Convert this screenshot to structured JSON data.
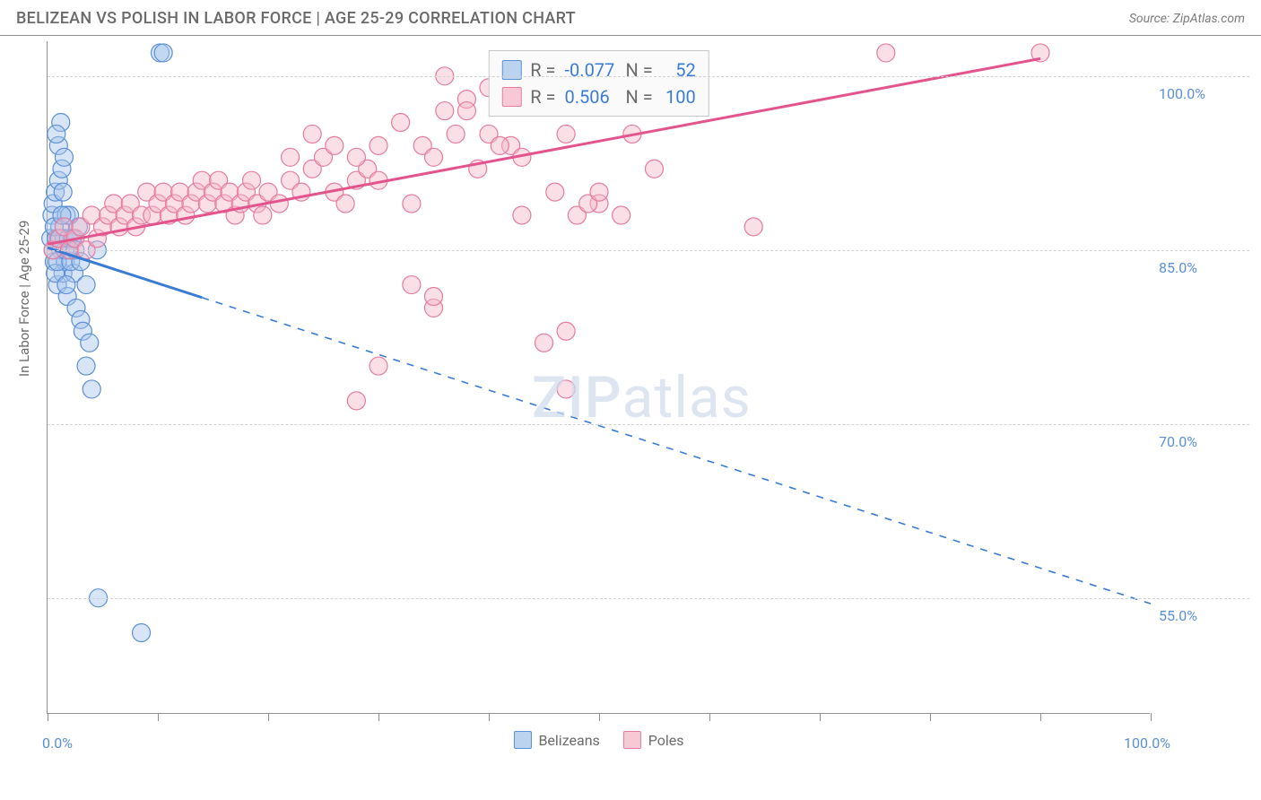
{
  "title": "BELIZEAN VS POLISH IN LABOR FORCE | AGE 25-29 CORRELATION CHART",
  "source": "Source: ZipAtlas.com",
  "watermark_zip": "ZIP",
  "watermark_atlas": "atlas",
  "chart": {
    "type": "scatter",
    "background_color": "#ffffff",
    "axis_color": "#909090",
    "grid_color": "#d2d2d2",
    "text_color": "#6b6b6b",
    "value_color": "#5b8fd6",
    "ylabel": "In Labor Force | Age 25-29",
    "xlim": [
      0,
      100
    ],
    "ylim": [
      45,
      103
    ],
    "xtick_positions": [
      0,
      10,
      20,
      30,
      40,
      50,
      60,
      70,
      80,
      90,
      100
    ],
    "xtick_labels": {
      "0": "0.0%",
      "100": "100.0%"
    },
    "ytick_positions": [
      55,
      70,
      85,
      100
    ],
    "ytick_labels": {
      "55": "55.0%",
      "70": "70.0%",
      "85": "85.0%",
      "100": "100.0%"
    },
    "marker_radius": 10,
    "marker_opacity": 0.45,
    "series": [
      {
        "name": "Belizeans",
        "label": "Belizeans",
        "color_fill": "#a8c5ec",
        "color_stroke": "#5b8fd6",
        "swatch_fill": "#bcd3f0",
        "swatch_stroke": "#5b8fd6",
        "line_color": "#3a7bd5",
        "R": "-0.077",
        "N": "52",
        "trend": {
          "x1": 0,
          "y1": 85.2,
          "x2": 100,
          "y2": 54.5,
          "solid_until_x": 14
        },
        "points": [
          [
            0.3,
            86
          ],
          [
            0.4,
            88
          ],
          [
            0.5,
            89
          ],
          [
            0.6,
            84
          ],
          [
            0.7,
            90
          ],
          [
            0.8,
            86
          ],
          [
            0.9,
            82
          ],
          [
            1.0,
            91
          ],
          [
            1.1,
            87
          ],
          [
            1.2,
            85
          ],
          [
            1.3,
            92
          ],
          [
            1.4,
            83
          ],
          [
            1.5,
            86
          ],
          [
            1.6,
            84
          ],
          [
            1.7,
            88
          ],
          [
            1.8,
            81
          ],
          [
            2.0,
            85
          ],
          [
            2.2,
            86
          ],
          [
            2.4,
            83
          ],
          [
            2.6,
            80
          ],
          [
            2.8,
            87
          ],
          [
            3.0,
            79
          ],
          [
            3.2,
            78
          ],
          [
            3.5,
            75
          ],
          [
            3.8,
            77
          ],
          [
            4.0,
            73
          ],
          [
            1.0,
            94
          ],
          [
            1.2,
            96
          ],
          [
            1.5,
            93
          ],
          [
            0.8,
            95
          ],
          [
            1.8,
            85
          ],
          [
            2.0,
            88
          ],
          [
            0.5,
            85
          ],
          [
            0.6,
            87
          ],
          [
            0.7,
            83
          ],
          [
            0.9,
            84
          ],
          [
            1.1,
            86
          ],
          [
            1.3,
            88
          ],
          [
            1.4,
            90
          ],
          [
            1.6,
            85
          ],
          [
            1.7,
            82
          ],
          [
            1.9,
            86
          ],
          [
            2.1,
            84
          ],
          [
            2.3,
            86
          ],
          [
            2.5,
            85
          ],
          [
            3.0,
            84
          ],
          [
            3.5,
            82
          ],
          [
            4.5,
            85
          ],
          [
            10.2,
            102
          ],
          [
            10.5,
            102
          ],
          [
            4.6,
            55
          ],
          [
            8.5,
            52
          ]
        ]
      },
      {
        "name": "Poles",
        "label": "Poles",
        "color_fill": "#f5b8ca",
        "color_stroke": "#e57ba0",
        "swatch_fill": "#f7c9d7",
        "swatch_stroke": "#e57ba0",
        "line_color": "#e3548c",
        "R": "0.506",
        "N": "100",
        "trend": {
          "x1": 0,
          "y1": 85.5,
          "x2": 90,
          "y2": 101.5,
          "solid_until_x": 90
        },
        "points": [
          [
            0.5,
            85
          ],
          [
            1,
            86
          ],
          [
            1.5,
            87
          ],
          [
            2,
            85
          ],
          [
            2.5,
            86
          ],
          [
            3,
            87
          ],
          [
            3.5,
            85
          ],
          [
            4,
            88
          ],
          [
            4.5,
            86
          ],
          [
            5,
            87
          ],
          [
            5.5,
            88
          ],
          [
            6,
            89
          ],
          [
            6.5,
            87
          ],
          [
            7,
            88
          ],
          [
            7.5,
            89
          ],
          [
            8,
            87
          ],
          [
            8.5,
            88
          ],
          [
            9,
            90
          ],
          [
            9.5,
            88
          ],
          [
            10,
            89
          ],
          [
            10.5,
            90
          ],
          [
            11,
            88
          ],
          [
            11.5,
            89
          ],
          [
            12,
            90
          ],
          [
            12.5,
            88
          ],
          [
            13,
            89
          ],
          [
            13.5,
            90
          ],
          [
            14,
            91
          ],
          [
            14.5,
            89
          ],
          [
            15,
            90
          ],
          [
            15.5,
            91
          ],
          [
            16,
            89
          ],
          [
            16.5,
            90
          ],
          [
            17,
            88
          ],
          [
            17.5,
            89
          ],
          [
            18,
            90
          ],
          [
            18.5,
            91
          ],
          [
            19,
            89
          ],
          [
            19.5,
            88
          ],
          [
            20,
            90
          ],
          [
            21,
            89
          ],
          [
            22,
            91
          ],
          [
            23,
            90
          ],
          [
            24,
            92
          ],
          [
            25,
            93
          ],
          [
            26,
            90
          ],
          [
            27,
            89
          ],
          [
            28,
            91
          ],
          [
            29,
            92
          ],
          [
            30,
            94
          ],
          [
            22,
            93
          ],
          [
            24,
            95
          ],
          [
            26,
            94
          ],
          [
            28,
            93
          ],
          [
            30,
            91
          ],
          [
            32,
            96
          ],
          [
            34,
            94
          ],
          [
            36,
            97
          ],
          [
            38,
            98
          ],
          [
            40,
            99
          ],
          [
            36,
            100
          ],
          [
            38,
            97
          ],
          [
            40,
            95
          ],
          [
            42,
            94
          ],
          [
            33,
            82
          ],
          [
            35,
            80
          ],
          [
            33,
            89
          ],
          [
            35,
            93
          ],
          [
            37,
            95
          ],
          [
            39,
            92
          ],
          [
            41,
            94
          ],
          [
            43,
            93
          ],
          [
            45,
            98
          ],
          [
            47,
            95
          ],
          [
            43,
            88
          ],
          [
            46,
            90
          ],
          [
            48,
            101
          ],
          [
            50,
            101
          ],
          [
            52,
            101
          ],
          [
            54,
            101
          ],
          [
            56,
            101
          ],
          [
            58,
            101
          ],
          [
            48,
            88
          ],
          [
            50,
            89
          ],
          [
            45,
            77
          ],
          [
            47,
            73
          ],
          [
            53,
            95
          ],
          [
            55,
            92
          ],
          [
            28,
            72
          ],
          [
            30,
            75
          ],
          [
            35,
            81
          ],
          [
            49,
            89
          ],
          [
            55,
            101
          ],
          [
            57,
            101
          ],
          [
            50,
            90
          ],
          [
            52,
            88
          ],
          [
            64,
            87
          ],
          [
            47,
            78
          ],
          [
            76,
            102
          ],
          [
            90,
            102
          ]
        ]
      }
    ]
  },
  "legend_labels": {
    "r": "R =",
    "n": "N ="
  }
}
